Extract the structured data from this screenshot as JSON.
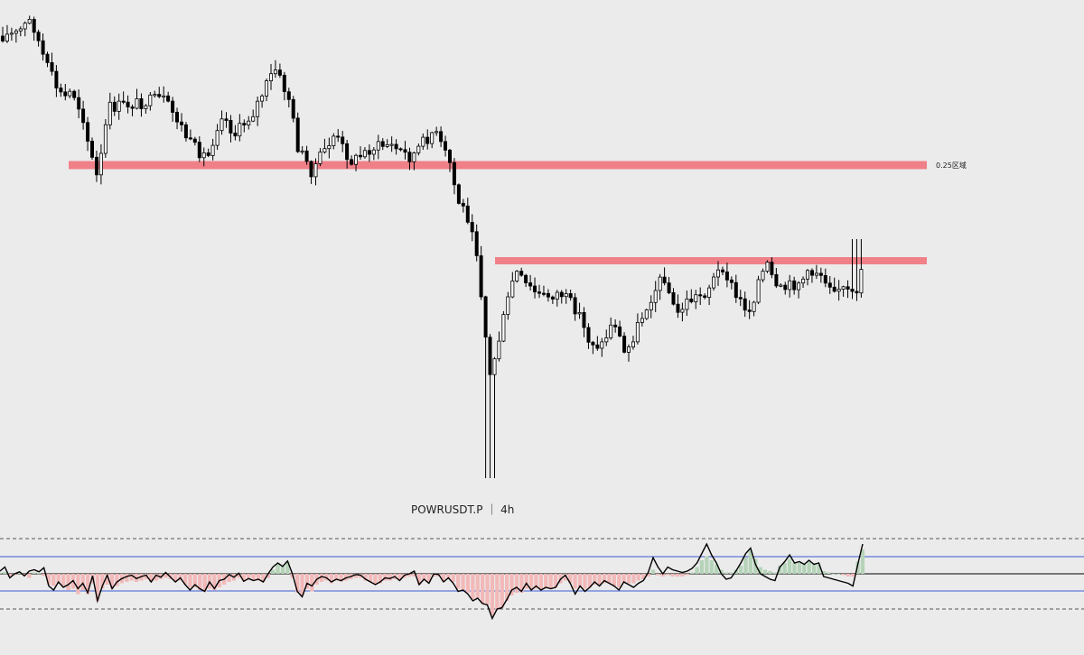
{
  "chart_data": {
    "type": "candlestick",
    "symbol_label": "POWRUSDT.P ｜ 4h",
    "zones": [
      {
        "label": "0.25区域",
        "color": "#f08088"
      },
      {
        "label": "",
        "color": "#f08088"
      }
    ],
    "colors": {
      "background": "#ebebeb",
      "candle_up": "#ffffff",
      "candle_down": "#000000",
      "wick": "#000000",
      "hist_positive": "#b5d3b8",
      "hist_negative": "#f2b9b9",
      "osc_line": "#000000",
      "band_line": "#3b5bd6",
      "zero_line": "#000000",
      "dashed_line": "#555555"
    },
    "oscillator": {
      "line": [
        4,
        10,
        -6,
        0,
        3,
        -3,
        4,
        6,
        3,
        9,
        -18,
        -24,
        -12,
        -20,
        -16,
        -10,
        -22,
        -14,
        -28,
        -3,
        -40,
        -18,
        -2,
        -22,
        -12,
        -7,
        -4,
        -2,
        -7,
        -4,
        -2,
        -12,
        -2,
        -5,
        2,
        -5,
        -12,
        -6,
        -16,
        -24,
        -16,
        -22,
        -26,
        -12,
        -22,
        -10,
        -8,
        -1,
        -5,
        1,
        -11,
        -7,
        -10,
        -8,
        -12,
        0,
        10,
        16,
        11,
        19,
        0,
        -26,
        -34,
        -14,
        -18,
        -8,
        -4,
        -6,
        -12,
        -8,
        -10,
        -6,
        -4,
        -1,
        -2,
        -8,
        -12,
        -16,
        -12,
        -6,
        -7,
        -4,
        -10,
        -2,
        0,
        4,
        -16,
        -8,
        -14,
        0,
        -1,
        -12,
        -6,
        -14,
        -26,
        -24,
        -30,
        -40,
        -36,
        -44,
        -46,
        -66,
        -52,
        -50,
        -38,
        -24,
        -20,
        -26,
        -14,
        -24,
        -18,
        -24,
        -20,
        -22,
        -20,
        -8,
        -2,
        -14,
        -30,
        -18,
        -26,
        -20,
        -12,
        -18,
        -10,
        -14,
        -18,
        -24,
        -12,
        -16,
        -20,
        -14,
        -10,
        2,
        24,
        10,
        0,
        10,
        6,
        4,
        2,
        4,
        8,
        16,
        30,
        44,
        28,
        16,
        0,
        -8,
        -6,
        4,
        16,
        30,
        38,
        14,
        0,
        -4,
        -8,
        -10,
        10,
        18,
        28,
        16,
        18,
        14,
        20,
        14,
        16,
        -4,
        -6,
        -8,
        -10,
        -12,
        -14,
        -18,
        14,
        44
      ]
    },
    "histogram": {
      "values": [
        2,
        3,
        -4,
        -2,
        3,
        -3,
        -6,
        2,
        1,
        -3,
        -16,
        -18,
        -14,
        -18,
        -24,
        -22,
        -30,
        -24,
        -30,
        -14,
        -40,
        -22,
        -16,
        -22,
        -18,
        -14,
        -12,
        -10,
        -12,
        -10,
        -8,
        -12,
        -10,
        -8,
        -6,
        -8,
        -12,
        -10,
        -16,
        -20,
        -20,
        -24,
        -26,
        -22,
        -24,
        -20,
        -16,
        -12,
        -10,
        -6,
        -10,
        -8,
        -10,
        -10,
        -12,
        -6,
        6,
        14,
        12,
        18,
        -6,
        -28,
        -32,
        -22,
        -26,
        -16,
        -12,
        -10,
        -14,
        -10,
        -12,
        -10,
        -8,
        -6,
        -6,
        -10,
        -12,
        -16,
        -14,
        -10,
        -10,
        -8,
        -10,
        -6,
        -4,
        -4,
        -16,
        -10,
        -12,
        -4,
        -4,
        -12,
        -8,
        -12,
        -22,
        -24,
        -28,
        -38,
        -36,
        -44,
        -46,
        -62,
        -54,
        -50,
        -40,
        -32,
        -28,
        -28,
        -22,
        -24,
        -22,
        -24,
        -22,
        -22,
        -20,
        -14,
        -10,
        -14,
        -22,
        -20,
        -22,
        -20,
        -16,
        -18,
        -14,
        -14,
        -18,
        -20,
        -14,
        -14,
        -14,
        -10,
        -8,
        -4,
        6,
        -2,
        -4,
        -2,
        -4,
        -4,
        -4,
        -2,
        2,
        10,
        20,
        26,
        20,
        14,
        6,
        2,
        2,
        6,
        12,
        24,
        34,
        22,
        10,
        6,
        4,
        2,
        12,
        16,
        22,
        16,
        16,
        14,
        18,
        16,
        14,
        4,
        2,
        0,
        0,
        -2,
        -4,
        -4,
        18,
        36
      ]
    }
  }
}
